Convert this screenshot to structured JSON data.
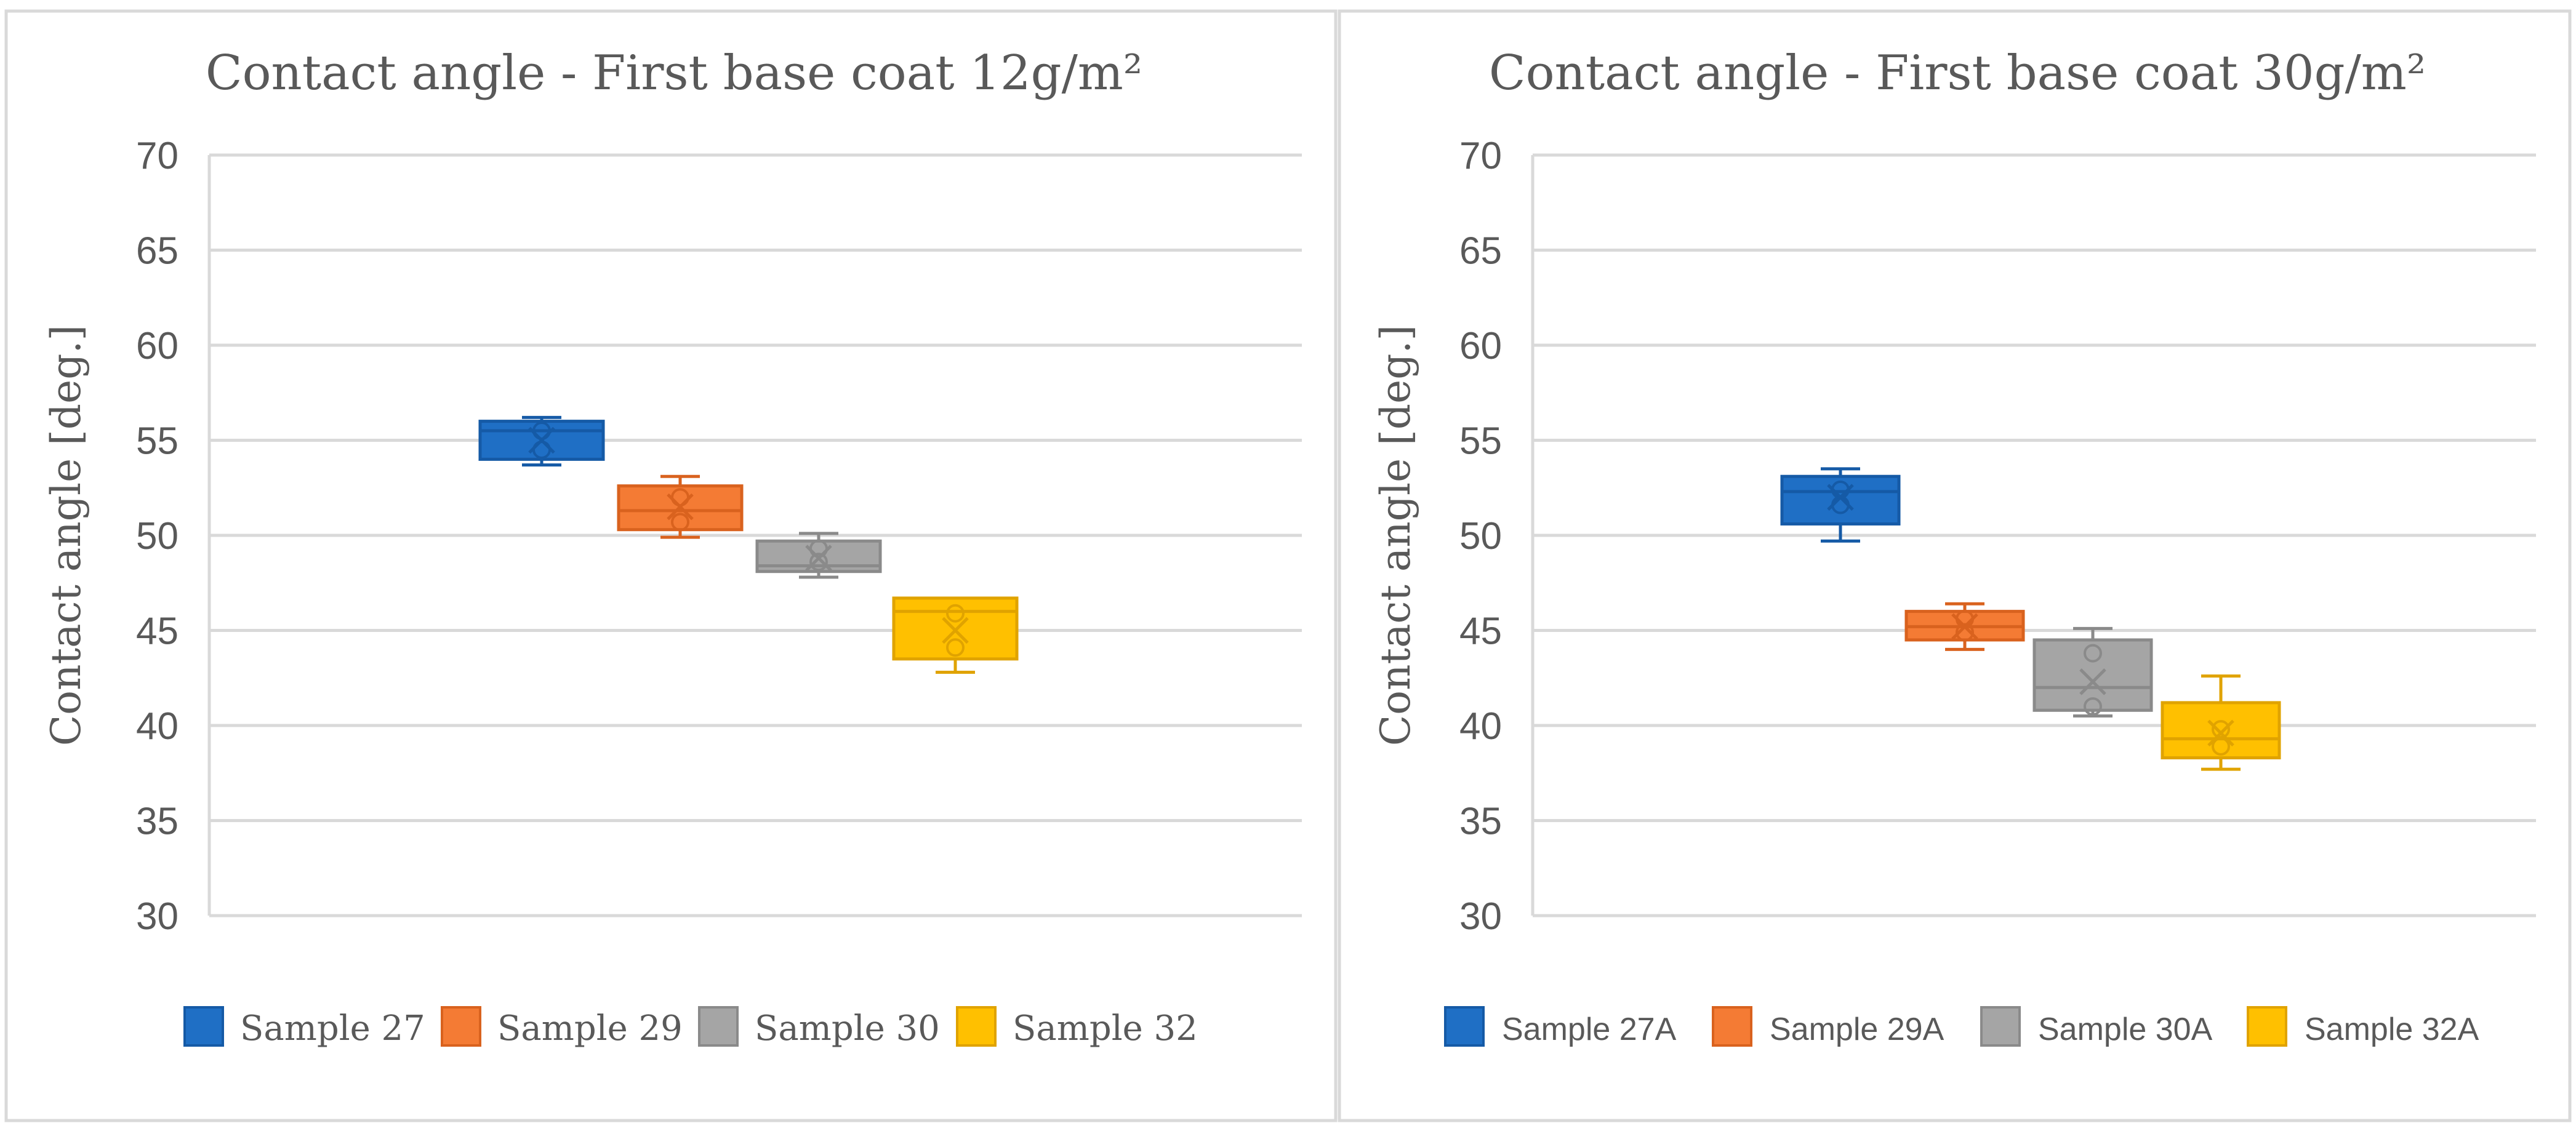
{
  "chart_data": [
    {
      "type": "box",
      "title": "Contact angle - First base coat 12g/m²",
      "xlabel": "",
      "ylabel": "Contact angle [deg.]",
      "ylim": [
        30,
        70
      ],
      "yticks": [
        30,
        35,
        40,
        45,
        50,
        55,
        60,
        65,
        70
      ],
      "grid": true,
      "legend_position": "bottom",
      "series": [
        {
          "name": "Sample 27",
          "color": "#1F6FC5",
          "edge": "#155AA6",
          "min": 53.7,
          "q1": 54.0,
          "median": 55.5,
          "q3": 56.0,
          "max": 56.2,
          "mean": 55.0,
          "points": [
            55.5,
            54.5
          ]
        },
        {
          "name": "Sample 29",
          "color": "#F47B34",
          "edge": "#D9621E",
          "min": 49.9,
          "q1": 50.3,
          "median": 51.3,
          "q3": 52.6,
          "max": 53.1,
          "mean": 51.5,
          "points": [
            52.0,
            50.7
          ]
        },
        {
          "name": "Sample 30",
          "color": "#A5A5A5",
          "edge": "#8A8A8A",
          "min": 47.8,
          "q1": 48.1,
          "median": 48.4,
          "q3": 49.7,
          "max": 50.1,
          "mean": 48.8,
          "points": [
            49.3,
            48.6
          ]
        },
        {
          "name": "Sample 32",
          "color": "#FFC000",
          "edge": "#E0A300",
          "min": 42.8,
          "q1": 43.5,
          "median": 46.0,
          "q3": 46.7,
          "max": 46.7,
          "mean": 45.0,
          "points": [
            45.9,
            44.1
          ]
        }
      ]
    },
    {
      "type": "box",
      "title": "Contact angle - First base coat 30g/m²",
      "xlabel": "",
      "ylabel": "Contact angle [deg.]",
      "ylim": [
        30,
        70
      ],
      "yticks": [
        30,
        35,
        40,
        45,
        50,
        55,
        60,
        65,
        70
      ],
      "grid": true,
      "legend_position": "bottom",
      "series": [
        {
          "name": "Sample 27A",
          "color": "#1F6FC5",
          "edge": "#155AA6",
          "min": 49.7,
          "q1": 50.6,
          "median": 52.3,
          "q3": 53.1,
          "max": 53.5,
          "mean": 52.0,
          "points": [
            52.4,
            51.6
          ]
        },
        {
          "name": "Sample 29A",
          "color": "#F47B34",
          "edge": "#D9621E",
          "min": 44.0,
          "q1": 44.5,
          "median": 45.2,
          "q3": 46.0,
          "max": 46.4,
          "mean": 45.2,
          "points": [
            45.6,
            44.9
          ]
        },
        {
          "name": "Sample 30A",
          "color": "#A5A5A5",
          "edge": "#8A8A8A",
          "min": 40.5,
          "q1": 40.8,
          "median": 42.0,
          "q3": 44.5,
          "max": 45.1,
          "mean": 42.3,
          "points": [
            43.8,
            41.0
          ]
        },
        {
          "name": "Sample 32A",
          "color": "#FFC000",
          "edge": "#E0A300",
          "min": 37.7,
          "q1": 38.3,
          "median": 39.3,
          "q3": 41.2,
          "max": 42.6,
          "mean": 39.6,
          "points": [
            39.8,
            38.9
          ]
        }
      ]
    }
  ]
}
